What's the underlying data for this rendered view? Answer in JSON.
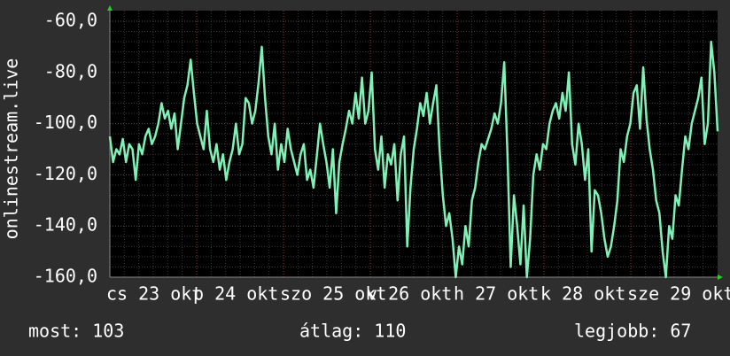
{
  "chart_data": {
    "type": "line",
    "y_label": "onlinestream.live",
    "x_labels": [
      "cs 23 okt",
      "p 24 okt",
      "szo 25 okt",
      "v 26 okt",
      "h 27 okt",
      "k 28 okt",
      "sze 29 okt"
    ],
    "ylim": [
      -160,
      -60
    ],
    "yticks": [
      {
        "value": -160,
        "label": "-160,0"
      },
      {
        "value": -140,
        "label": "-140,0"
      },
      {
        "value": -120,
        "label": "-120,0"
      },
      {
        "value": -100,
        "label": "-100,0"
      },
      {
        "value": -80,
        "label": "-80,0"
      },
      {
        "value": -60,
        "label": "-60,0"
      }
    ],
    "grid": true,
    "series": [
      {
        "color": "#7ff0b6",
        "values": [
          -105,
          -115,
          -110,
          -112,
          -106,
          -115,
          -108,
          -110,
          -122,
          -108,
          -112,
          -105,
          -102,
          -108,
          -105,
          -100,
          -92,
          -98,
          -95,
          -102,
          -96,
          -110,
          -100,
          -90,
          -85,
          -75,
          -88,
          -100,
          -105,
          -110,
          -95,
          -110,
          -115,
          -108,
          -118,
          -112,
          -122,
          -115,
          -110,
          -100,
          -112,
          -108,
          -90,
          -92,
          -100,
          -95,
          -84,
          -70,
          -90,
          -105,
          -112,
          -100,
          -118,
          -108,
          -115,
          -102,
          -110,
          -115,
          -120,
          -112,
          -108,
          -122,
          -118,
          -125,
          -113,
          -100,
          -108,
          -115,
          -125,
          -110,
          -135,
          -115,
          -108,
          -102,
          -95,
          -100,
          -88,
          -98,
          -82,
          -100,
          -95,
          -80,
          -110,
          -118,
          -105,
          -125,
          -112,
          -116,
          -108,
          -130,
          -112,
          -105,
          -148,
          -125,
          -110,
          -102,
          -92,
          -97,
          -88,
          -100,
          -92,
          -85,
          -110,
          -128,
          -140,
          -135,
          -145,
          -160,
          -148,
          -155,
          -140,
          -148,
          -130,
          -125,
          -115,
          -108,
          -110,
          -106,
          -102,
          -96,
          -100,
          -92,
          -76,
          -112,
          -156,
          -128,
          -140,
          -155,
          -132,
          -160,
          -145,
          -120,
          -112,
          -118,
          -108,
          -110,
          -100,
          -95,
          -92,
          -98,
          -88,
          -95,
          -80,
          -108,
          -116,
          -100,
          -108,
          -122,
          -110,
          -150,
          -126,
          -128,
          -135,
          -145,
          -152,
          -148,
          -140,
          -130,
          -110,
          -115,
          -105,
          -100,
          -88,
          -85,
          -102,
          -78,
          -98,
          -110,
          -118,
          -130,
          -135,
          -150,
          -160,
          -140,
          -145,
          -128,
          -132,
          -118,
          -105,
          -110,
          -100,
          -95,
          -90,
          -82,
          -108,
          -100,
          -68,
          -80,
          -103
        ]
      }
    ],
    "footer": [
      "most: 103",
      "átlag: 110",
      "legjobb: 67"
    ]
  }
}
